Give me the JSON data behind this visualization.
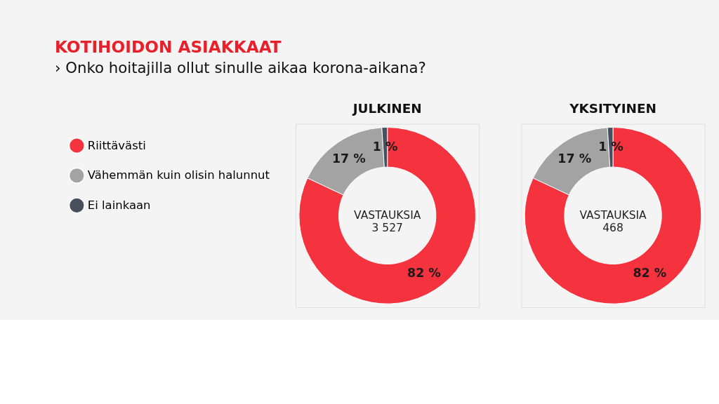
{
  "chart_data": [
    {
      "type": "donut",
      "title": "KOTIHOIDON ASIAKKAAT",
      "subtitle": "› Onko hoitajilla ollut sinulle aikaa korona-aikana?",
      "legend": "left",
      "categories": [
        "Riittävästi",
        "Vähemmän kuin olisin halunnut",
        "Ei lainkaan"
      ],
      "values": [
        82,
        17,
        1
      ],
      "colors": [
        "#f5333f",
        "#a3a3a3",
        "#48505e"
      ],
      "value_labels": [
        "82 %",
        "17 %",
        "1 %"
      ],
      "annotations": [
        "JULKINEN",
        "VASTAUKSIA\n3 527"
      ]
    },
    {
      "type": "donut",
      "legend": false,
      "categories": [
        null,
        null,
        null
      ],
      "values": [
        82,
        17,
        1
      ],
      "colors": [
        "#f5333f",
        "#a3a3a3",
        "#48505e"
      ],
      "value_labels": [
        "82 %",
        "17 %",
        "1 %"
      ],
      "annotations": [
        "YKSITYINEN",
        "VASTAUKSIA\n468"
      ]
    }
  ]
}
